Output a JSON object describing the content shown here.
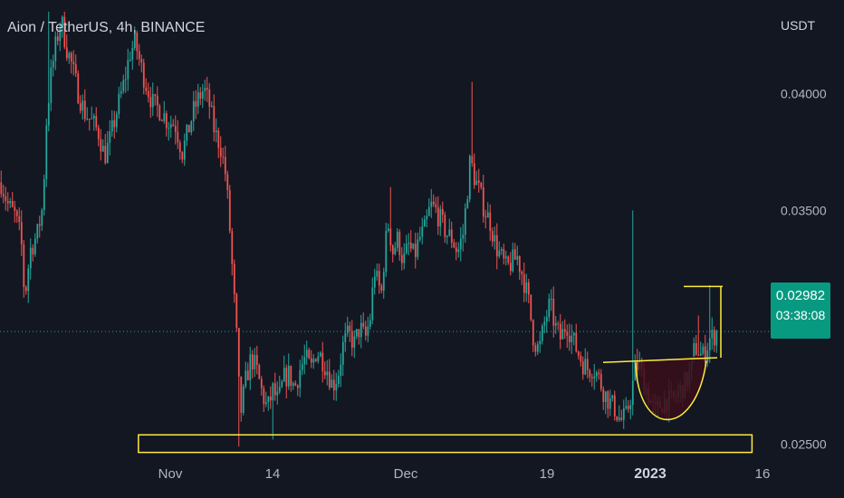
{
  "header": {
    "symbol_title": "Aion / TetherUS, 4h, BINANCE",
    "currency": "USDT"
  },
  "price_badge": {
    "price": "0.02982",
    "countdown": "03:38:08"
  },
  "colors": {
    "background": "#131722",
    "up_candle": "#26a69a",
    "down_candle": "#ef5350",
    "accent_yellow": "#ffeb3b",
    "badge": "#089981",
    "cup_fill": "#3a0d1a"
  },
  "chart_data": {
    "type": "candlestick",
    "title": "Aion / TetherUS, 4h, BINANCE",
    "ylabel": "USDT",
    "xlabel": "",
    "ylim": [
      0.0227,
      0.044
    ],
    "y_ticks": [
      "0.04000",
      "0.03500",
      "0.02500"
    ],
    "x_ticks": [
      {
        "label": "Nov",
        "bold": false
      },
      {
        "label": "14",
        "bold": false
      },
      {
        "label": "Dec",
        "bold": false
      },
      {
        "label": "19",
        "bold": false
      },
      {
        "label": "2023",
        "bold": true
      },
      {
        "label": "16",
        "bold": false
      }
    ],
    "current_price": 0.02982,
    "ohlc_path": [
      [
        0,
        0.0362
      ],
      [
        8,
        0.0352
      ],
      [
        15,
        0.0348
      ],
      [
        22,
        0.0338
      ],
      [
        26,
        0.0312
      ],
      [
        32,
        0.0333
      ],
      [
        40,
        0.034
      ],
      [
        46,
        0.0352
      ],
      [
        50,
        0.0388
      ],
      [
        54,
        0.0405
      ],
      [
        60,
        0.042
      ],
      [
        66,
        0.0432
      ],
      [
        72,
        0.042
      ],
      [
        78,
        0.0412
      ],
      [
        84,
        0.0402
      ],
      [
        92,
        0.0392
      ],
      [
        100,
        0.0388
      ],
      [
        108,
        0.0383
      ],
      [
        114,
        0.0373
      ],
      [
        120,
        0.038
      ],
      [
        128,
        0.0393
      ],
      [
        136,
        0.0405
      ],
      [
        142,
        0.0417
      ],
      [
        148,
        0.0422
      ],
      [
        154,
        0.0412
      ],
      [
        160,
        0.0404
      ],
      [
        168,
        0.0395
      ],
      [
        176,
        0.0393
      ],
      [
        184,
        0.0388
      ],
      [
        192,
        0.0387
      ],
      [
        200,
        0.0375
      ],
      [
        206,
        0.0383
      ],
      [
        212,
        0.0392
      ],
      [
        218,
        0.0398
      ],
      [
        224,
        0.0402
      ],
      [
        230,
        0.0395
      ],
      [
        236,
        0.0383
      ],
      [
        242,
        0.0378
      ],
      [
        248,
        0.0365
      ],
      [
        252,
        0.0345
      ],
      [
        256,
        0.032
      ],
      [
        260,
        0.0296
      ],
      [
        264,
        0.0262
      ],
      [
        270,
        0.0277
      ],
      [
        276,
        0.0287
      ],
      [
        282,
        0.0282
      ],
      [
        288,
        0.0272
      ],
      [
        294,
        0.0265
      ],
      [
        300,
        0.0273
      ],
      [
        306,
        0.0268
      ],
      [
        312,
        0.0278
      ],
      [
        318,
        0.028
      ],
      [
        324,
        0.0274
      ],
      [
        330,
        0.0282
      ],
      [
        336,
        0.0287
      ],
      [
        342,
        0.0282
      ],
      [
        348,
        0.029
      ],
      [
        354,
        0.0287
      ],
      [
        360,
        0.0282
      ],
      [
        366,
        0.0275
      ],
      [
        372,
        0.028
      ],
      [
        378,
        0.0293
      ],
      [
        384,
        0.0297
      ],
      [
        390,
        0.0293
      ],
      [
        396,
        0.03
      ],
      [
        402,
        0.0295
      ],
      [
        408,
        0.0305
      ],
      [
        412,
        0.0325
      ],
      [
        416,
        0.0318
      ],
      [
        420,
        0.0315
      ],
      [
        424,
        0.0335
      ],
      [
        428,
        0.0345
      ],
      [
        432,
        0.0332
      ],
      [
        438,
        0.0338
      ],
      [
        444,
        0.0328
      ],
      [
        450,
        0.0335
      ],
      [
        456,
        0.033
      ],
      [
        462,
        0.0338
      ],
      [
        468,
        0.0342
      ],
      [
        474,
        0.0352
      ],
      [
        480,
        0.035
      ],
      [
        486,
        0.0345
      ],
      [
        492,
        0.034
      ],
      [
        498,
        0.0338
      ],
      [
        504,
        0.0332
      ],
      [
        510,
        0.034
      ],
      [
        514,
        0.0355
      ],
      [
        518,
        0.0372
      ],
      [
        522,
        0.0365
      ],
      [
        528,
        0.0358
      ],
      [
        534,
        0.035
      ],
      [
        540,
        0.0345
      ],
      [
        546,
        0.0335
      ],
      [
        552,
        0.033
      ],
      [
        558,
        0.0325
      ],
      [
        564,
        0.0328
      ],
      [
        570,
        0.033
      ],
      [
        576,
        0.0322
      ],
      [
        582,
        0.0312
      ],
      [
        588,
        0.0295
      ],
      [
        594,
        0.029
      ],
      [
        600,
        0.0302
      ],
      [
        606,
        0.031
      ],
      [
        612,
        0.03
      ],
      [
        618,
        0.0295
      ],
      [
        624,
        0.0302
      ],
      [
        630,
        0.0296
      ],
      [
        636,
        0.029
      ],
      [
        642,
        0.0285
      ],
      [
        648,
        0.0282
      ],
      [
        654,
        0.0283
      ],
      [
        660,
        0.0278
      ],
      [
        666,
        0.0272
      ],
      [
        672,
        0.0268
      ],
      [
        678,
        0.0265
      ],
      [
        684,
        0.026
      ],
      [
        690,
        0.0262
      ],
      [
        696,
        0.0272
      ],
      [
        700,
        0.0282
      ],
      [
        704,
        0.0284
      ],
      [
        710,
        0.0276
      ],
      [
        716,
        0.027
      ],
      [
        722,
        0.0263
      ],
      [
        728,
        0.0267
      ],
      [
        734,
        0.0269
      ],
      [
        740,
        0.0268
      ],
      [
        746,
        0.0271
      ],
      [
        752,
        0.0274
      ],
      [
        758,
        0.0278
      ],
      [
        762,
        0.0282
      ],
      [
        766,
        0.0292
      ],
      [
        770,
        0.029
      ],
      [
        774,
        0.0287
      ],
      [
        778,
        0.029
      ],
      [
        782,
        0.0295
      ],
      [
        786,
        0.0296
      ],
      [
        790,
        0.0298
      ]
    ],
    "support_zone": {
      "low": 0.02465,
      "high": 0.0254,
      "x_start": 0.164,
      "x_end": 0.891
    },
    "cup_handle": {
      "rim_price_left": 0.0285,
      "rim_price_right": 0.0288,
      "bottom_price": 0.026,
      "target_price": 0.03175
    }
  }
}
